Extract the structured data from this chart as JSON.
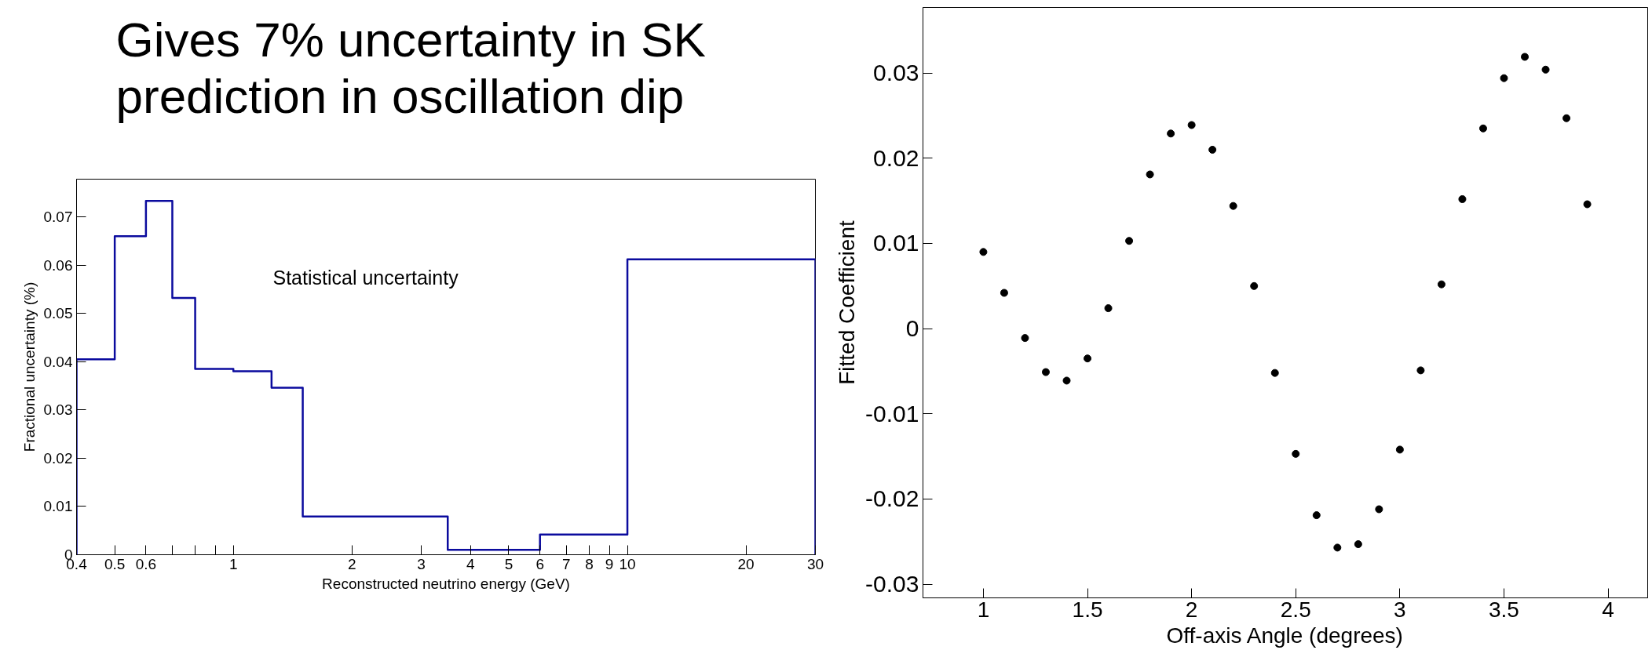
{
  "chart_data": [
    {
      "type": "other",
      "annotations": [
        "Gives 7% uncertainty in SK prediction in oscillation dip"
      ]
    },
    {
      "type": "histogram",
      "xlabel": "Reconstructed neutrino energy (GeV)",
      "ylabel": "Fractional uncertainty (%)",
      "annotations": [
        "Statistical uncertainty"
      ],
      "log": "x",
      "color": "#0b0b9e",
      "bins": [
        0.4,
        0.5,
        0.6,
        0.7,
        0.8,
        1.0,
        1.25,
        1.5,
        3.5,
        6,
        10,
        30
      ],
      "values": [
        0.0405,
        0.066,
        0.0733,
        0.0532,
        0.0385,
        0.038,
        0.0346,
        0.0079,
        0.001,
        0.0042,
        0.0612
      ],
      "xlim": [
        0.4,
        30
      ],
      "ylim": [
        0,
        0.0778
      ],
      "xticks": [
        0.4,
        0.5,
        0.6,
        {
          "value": 0.7,
          "label": null
        },
        {
          "value": 0.8,
          "label": null
        },
        {
          "value": 0.9,
          "label": null
        },
        1,
        2,
        3,
        4,
        5,
        6,
        7,
        8,
        9,
        10,
        20,
        30
      ],
      "yticks": [
        0,
        0.01,
        0.02,
        0.03,
        0.04,
        0.05,
        0.06,
        0.07
      ],
      "grid": false
    },
    {
      "type": "scatter",
      "xlabel": "Off-axis Angle (degrees)",
      "ylabel": "Fitted Coefficient",
      "marker": "circle",
      "color": "#000000",
      "x": [
        1.0,
        1.1,
        1.2,
        1.3,
        1.4,
        1.5,
        1.6,
        1.7,
        1.8,
        1.9,
        2.0,
        2.1,
        2.2,
        2.3,
        2.4,
        2.5,
        2.6,
        2.7,
        2.8,
        2.9,
        3.0,
        3.1,
        3.2,
        3.3,
        3.4,
        3.5,
        3.6,
        3.7,
        3.8,
        3.9
      ],
      "values": [
        0.009,
        0.0042,
        -0.0011,
        -0.0051,
        -0.0061,
        -0.0035,
        0.0024,
        0.0103,
        0.0181,
        0.0229,
        0.0239,
        0.021,
        0.0144,
        0.005,
        -0.0052,
        -0.0147,
        -0.0219,
        -0.0257,
        -0.0253,
        -0.0212,
        -0.0142,
        -0.0049,
        0.0052,
        0.0152,
        0.0235,
        0.0294,
        0.0319,
        0.0304,
        0.0247,
        0.0146
      ],
      "xlim": [
        0.71,
        4.19
      ],
      "ylim": [
        -0.0316,
        0.0377
      ],
      "xticks": [
        1,
        1.5,
        2,
        2.5,
        3,
        3.5,
        4
      ],
      "yticks": [
        -0.03,
        -0.02,
        -0.01,
        0,
        0.01,
        0.02,
        0.03
      ],
      "grid": false
    }
  ]
}
